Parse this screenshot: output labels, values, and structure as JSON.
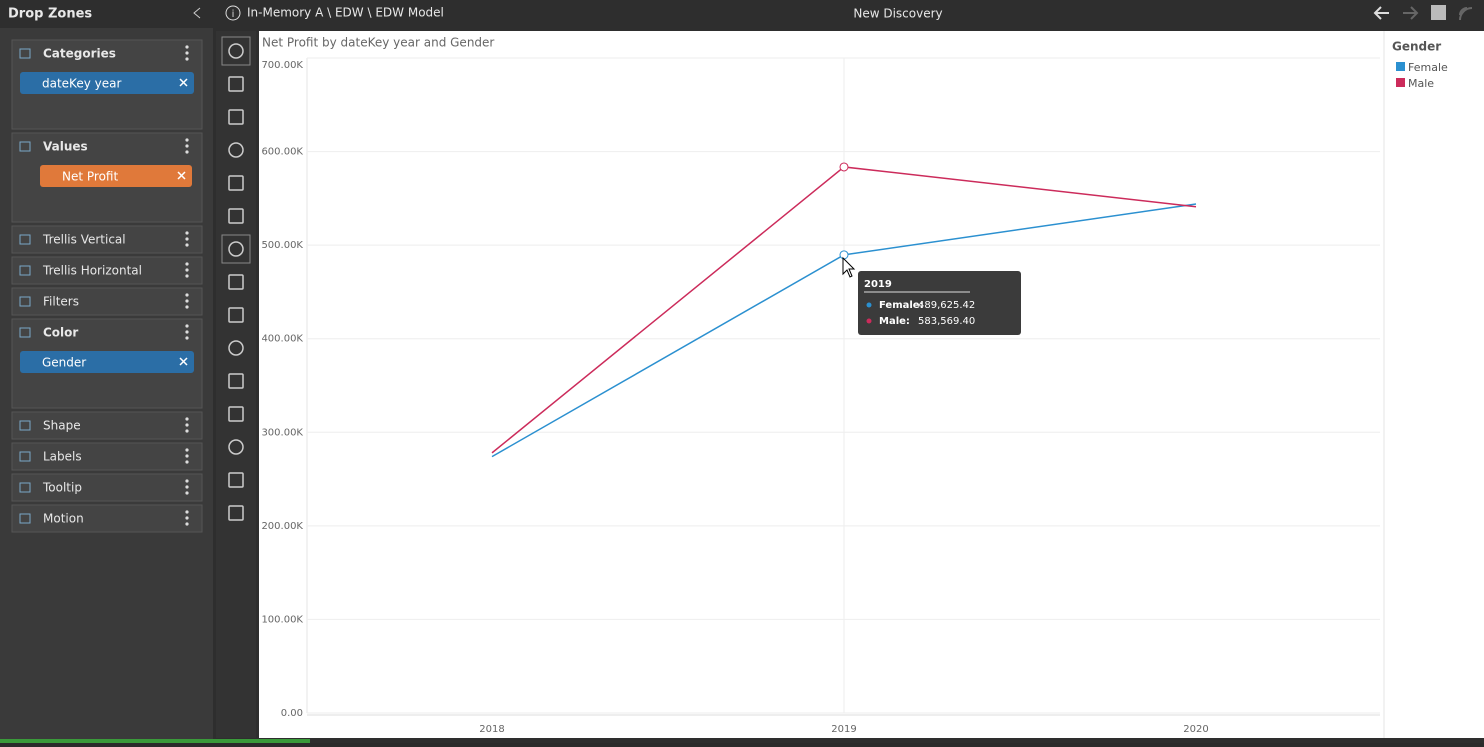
{
  "header": {
    "panel_title": "Drop Zones",
    "breadcrumb": "In-Memory A \\ EDW \\ EDW Model",
    "title": "New Discovery"
  },
  "drop_zones": [
    {
      "label": "Categories",
      "pill": "dateKey year",
      "pill_color": "#2b6ea6"
    },
    {
      "label": "Values",
      "pill": "Net Profit",
      "pill_color": "#e0793a"
    },
    {
      "label": "Trellis Vertical"
    },
    {
      "label": "Trellis Horizontal"
    },
    {
      "label": "Filters"
    },
    {
      "label": "Color",
      "pill": "Gender",
      "pill_color": "#2b6ea6"
    },
    {
      "label": "Shape"
    },
    {
      "label": "Labels"
    },
    {
      "label": "Tooltip"
    },
    {
      "label": "Motion"
    }
  ],
  "chart_data": {
    "type": "line",
    "title": "Net Profit by dateKey year and Gender",
    "categories": [
      "2018",
      "2019",
      "2020"
    ],
    "series": [
      {
        "name": "Female",
        "color": "#2b90d0",
        "values": [
          274000,
          489625.42,
          544000
        ],
        "value_labels": [
          null,
          "489,625.42",
          null
        ]
      },
      {
        "name": "Male",
        "color": "#cc2b5b",
        "values": [
          278000,
          583569.4,
          541000
        ],
        "value_labels": [
          null,
          "583,569.40",
          null
        ]
      }
    ],
    "ylim": [
      0,
      700000
    ],
    "yticks": [
      {
        "value": 0,
        "label": "0.00"
      },
      {
        "value": 100000,
        "label": "100.00K"
      },
      {
        "value": 200000,
        "label": "200.00K"
      },
      {
        "value": 300000,
        "label": "300.00K"
      },
      {
        "value": 400000,
        "label": "400.00K"
      },
      {
        "value": 500000,
        "label": "500.00K"
      },
      {
        "value": 600000,
        "label": "600.00K"
      },
      {
        "value": 700000,
        "label": "700.00K"
      }
    ],
    "grid": true,
    "legend_title": "Gender",
    "legend_position": "right",
    "tooltip": {
      "items": [
        "Female:",
        "Male:"
      ]
    }
  }
}
